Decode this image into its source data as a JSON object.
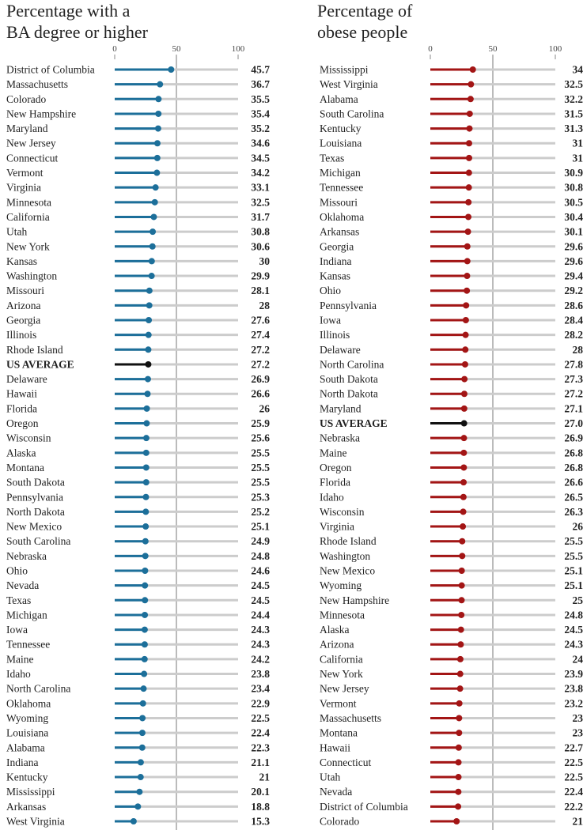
{
  "chart_data": [
    {
      "type": "lollipop",
      "title": "Percentage with a\nBA degree or higher",
      "xlim": [
        0,
        100
      ],
      "xticks": [
        "0",
        "50",
        "100"
      ],
      "reference_line": 50,
      "colors": {
        "series": "#1c6f9a",
        "average": "#111111",
        "track": "#cccccc"
      },
      "rows": [
        {
          "label": "District of Columbia",
          "value": 45.7,
          "display": "45.7"
        },
        {
          "label": "Massachusetts",
          "value": 36.7,
          "display": "36.7"
        },
        {
          "label": "Colorado",
          "value": 35.5,
          "display": "35.5"
        },
        {
          "label": "New Hampshire",
          "value": 35.4,
          "display": "35.4"
        },
        {
          "label": "Maryland",
          "value": 35.2,
          "display": "35.2"
        },
        {
          "label": "New Jersey",
          "value": 34.6,
          "display": "34.6"
        },
        {
          "label": "Connecticut",
          "value": 34.5,
          "display": "34.5"
        },
        {
          "label": "Vermont",
          "value": 34.2,
          "display": "34.2"
        },
        {
          "label": "Virginia",
          "value": 33.1,
          "display": "33.1"
        },
        {
          "label": "Minnesota",
          "value": 32.5,
          "display": "32.5"
        },
        {
          "label": "California",
          "value": 31.7,
          "display": "31.7"
        },
        {
          "label": "Utah",
          "value": 30.8,
          "display": "30.8"
        },
        {
          "label": "New York",
          "value": 30.6,
          "display": "30.6"
        },
        {
          "label": "Kansas",
          "value": 30,
          "display": "30"
        },
        {
          "label": "Washington",
          "value": 29.9,
          "display": "29.9"
        },
        {
          "label": "Missouri",
          "value": 28.1,
          "display": "28.1"
        },
        {
          "label": "Arizona",
          "value": 28,
          "display": "28"
        },
        {
          "label": "Georgia",
          "value": 27.6,
          "display": "27.6"
        },
        {
          "label": "Illinois",
          "value": 27.4,
          "display": "27.4"
        },
        {
          "label": "Rhode Island",
          "value": 27.2,
          "display": "27.2"
        },
        {
          "label": "US AVERAGE",
          "value": 27.2,
          "display": "27.2",
          "average": true
        },
        {
          "label": "Delaware",
          "value": 26.9,
          "display": "26.9"
        },
        {
          "label": "Hawaii",
          "value": 26.6,
          "display": "26.6"
        },
        {
          "label": "Florida",
          "value": 26,
          "display": "26"
        },
        {
          "label": "Oregon",
          "value": 25.9,
          "display": "25.9"
        },
        {
          "label": "Wisconsin",
          "value": 25.6,
          "display": "25.6"
        },
        {
          "label": "Alaska",
          "value": 25.5,
          "display": "25.5"
        },
        {
          "label": "Montana",
          "value": 25.5,
          "display": "25.5"
        },
        {
          "label": "South Dakota",
          "value": 25.5,
          "display": "25.5"
        },
        {
          "label": "Pennsylvania",
          "value": 25.3,
          "display": "25.3"
        },
        {
          "label": "North Dakota",
          "value": 25.2,
          "display": "25.2"
        },
        {
          "label": "New Mexico",
          "value": 25.1,
          "display": "25.1"
        },
        {
          "label": "South Carolina",
          "value": 24.9,
          "display": "24.9"
        },
        {
          "label": "Nebraska",
          "value": 24.8,
          "display": "24.8"
        },
        {
          "label": "Ohio",
          "value": 24.6,
          "display": "24.6"
        },
        {
          "label": "Nevada",
          "value": 24.5,
          "display": "24.5"
        },
        {
          "label": "Texas",
          "value": 24.5,
          "display": "24.5"
        },
        {
          "label": "Michigan",
          "value": 24.4,
          "display": "24.4"
        },
        {
          "label": "Iowa",
          "value": 24.3,
          "display": "24.3"
        },
        {
          "label": "Tennessee",
          "value": 24.3,
          "display": "24.3"
        },
        {
          "label": "Maine",
          "value": 24.2,
          "display": "24.2"
        },
        {
          "label": "Idaho",
          "value": 23.8,
          "display": "23.8"
        },
        {
          "label": "North Carolina",
          "value": 23.4,
          "display": "23.4"
        },
        {
          "label": "Oklahoma",
          "value": 22.9,
          "display": "22.9"
        },
        {
          "label": "Wyoming",
          "value": 22.5,
          "display": "22.5"
        },
        {
          "label": "Louisiana",
          "value": 22.4,
          "display": "22.4"
        },
        {
          "label": "Alabama",
          "value": 22.3,
          "display": "22.3"
        },
        {
          "label": "Indiana",
          "value": 21.1,
          "display": "21.1"
        },
        {
          "label": "Kentucky",
          "value": 21,
          "display": "21"
        },
        {
          "label": "Mississippi",
          "value": 20.1,
          "display": "20.1"
        },
        {
          "label": "Arkansas",
          "value": 18.8,
          "display": "18.8"
        },
        {
          "label": "West Virginia",
          "value": 15.3,
          "display": "15.3"
        }
      ]
    },
    {
      "type": "lollipop",
      "title": "Percentage of\nobese people",
      "xlim": [
        0,
        100
      ],
      "xticks": [
        "0",
        "50",
        "100"
      ],
      "reference_line": 50,
      "colors": {
        "series": "#a31515",
        "average": "#111111",
        "track": "#cccccc"
      },
      "rows": [
        {
          "label": "Mississippi",
          "value": 34,
          "display": "34"
        },
        {
          "label": "West Virginia",
          "value": 32.5,
          "display": "32.5"
        },
        {
          "label": "Alabama",
          "value": 32.2,
          "display": "32.2"
        },
        {
          "label": "South Carolina",
          "value": 31.5,
          "display": "31.5"
        },
        {
          "label": "Kentucky",
          "value": 31.3,
          "display": "31.3"
        },
        {
          "label": "Louisiana",
          "value": 31,
          "display": "31"
        },
        {
          "label": "Texas",
          "value": 31,
          "display": "31"
        },
        {
          "label": "Michigan",
          "value": 30.9,
          "display": "30.9"
        },
        {
          "label": "Tennessee",
          "value": 30.8,
          "display": "30.8"
        },
        {
          "label": "Missouri",
          "value": 30.5,
          "display": "30.5"
        },
        {
          "label": "Oklahoma",
          "value": 30.4,
          "display": "30.4"
        },
        {
          "label": "Arkansas",
          "value": 30.1,
          "display": "30.1"
        },
        {
          "label": "Georgia",
          "value": 29.6,
          "display": "29.6"
        },
        {
          "label": "Indiana",
          "value": 29.6,
          "display": "29.6"
        },
        {
          "label": "Kansas",
          "value": 29.4,
          "display": "29.4"
        },
        {
          "label": "Ohio",
          "value": 29.2,
          "display": "29.2"
        },
        {
          "label": "Pennsylvania",
          "value": 28.6,
          "display": "28.6"
        },
        {
          "label": "Iowa",
          "value": 28.4,
          "display": "28.4"
        },
        {
          "label": "Illinois",
          "value": 28.2,
          "display": "28.2"
        },
        {
          "label": "Delaware",
          "value": 28,
          "display": "28"
        },
        {
          "label": "North Carolina",
          "value": 27.8,
          "display": "27.8"
        },
        {
          "label": "South Dakota",
          "value": 27.3,
          "display": "27.3"
        },
        {
          "label": "North Dakota",
          "value": 27.2,
          "display": "27.2"
        },
        {
          "label": "Maryland",
          "value": 27.1,
          "display": "27.1"
        },
        {
          "label": "US AVERAGE",
          "value": 27.0,
          "display": "27.0",
          "average": true
        },
        {
          "label": "Nebraska",
          "value": 26.9,
          "display": "26.9"
        },
        {
          "label": "Maine",
          "value": 26.8,
          "display": "26.8"
        },
        {
          "label": "Oregon",
          "value": 26.8,
          "display": "26.8"
        },
        {
          "label": "Florida",
          "value": 26.6,
          "display": "26.6"
        },
        {
          "label": "Idaho",
          "value": 26.5,
          "display": "26.5"
        },
        {
          "label": "Wisconsin",
          "value": 26.3,
          "display": "26.3"
        },
        {
          "label": "Virginia",
          "value": 26,
          "display": "26"
        },
        {
          "label": "Rhode Island",
          "value": 25.5,
          "display": "25.5"
        },
        {
          "label": "Washington",
          "value": 25.5,
          "display": "25.5"
        },
        {
          "label": "New Mexico",
          "value": 25.1,
          "display": "25.1"
        },
        {
          "label": "Wyoming",
          "value": 25.1,
          "display": "25.1"
        },
        {
          "label": "New Hampshire",
          "value": 25,
          "display": "25"
        },
        {
          "label": "Minnesota",
          "value": 24.8,
          "display": "24.8"
        },
        {
          "label": "Alaska",
          "value": 24.5,
          "display": "24.5"
        },
        {
          "label": "Arizona",
          "value": 24.3,
          "display": "24.3"
        },
        {
          "label": "California",
          "value": 24,
          "display": "24"
        },
        {
          "label": "New York",
          "value": 23.9,
          "display": "23.9"
        },
        {
          "label": "New Jersey",
          "value": 23.8,
          "display": "23.8"
        },
        {
          "label": "Vermont",
          "value": 23.2,
          "display": "23.2"
        },
        {
          "label": "Massachusetts",
          "value": 23,
          "display": "23"
        },
        {
          "label": "Montana",
          "value": 23,
          "display": "23"
        },
        {
          "label": "Hawaii",
          "value": 22.7,
          "display": "22.7"
        },
        {
          "label": "Connecticut",
          "value": 22.5,
          "display": "22.5"
        },
        {
          "label": "Utah",
          "value": 22.5,
          "display": "22.5"
        },
        {
          "label": "Nevada",
          "value": 22.4,
          "display": "22.4"
        },
        {
          "label": "District of Columbia",
          "value": 22.2,
          "display": "22.2"
        },
        {
          "label": "Colorado",
          "value": 21,
          "display": "21"
        }
      ]
    }
  ]
}
